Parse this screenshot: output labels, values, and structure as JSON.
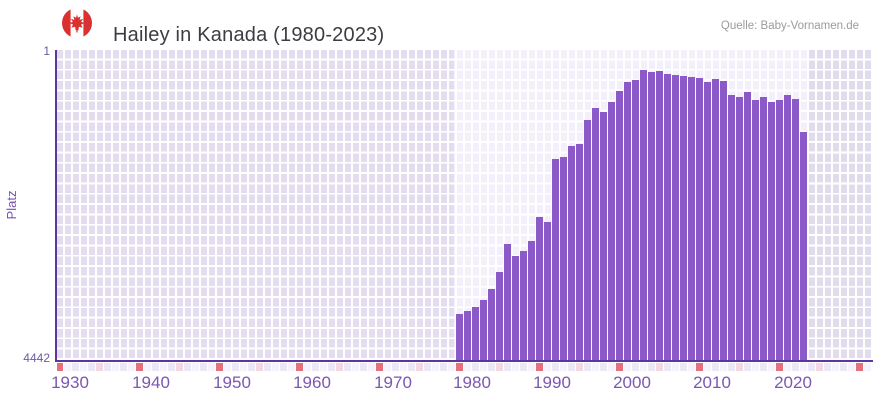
{
  "header": {
    "title": "Hailey in Kanada (1980-2023)",
    "source": "Quelle: Baby-Vornamen.de",
    "flag_icon": "canada-flag"
  },
  "chart_data": {
    "type": "bar",
    "title": "Hailey in Kanada (1980-2023)",
    "xlabel": "",
    "ylabel": "Platz",
    "y_axis": {
      "min": 1,
      "max": 4442,
      "inverted": true,
      "top_tick": "1",
      "bottom_tick": "4442"
    },
    "x_ticks": [
      "1930",
      "1940",
      "1950",
      "1960",
      "1970",
      "1980",
      "1990",
      "2000",
      "2010",
      "2020"
    ],
    "x_range_displayed": [
      1930,
      2031
    ],
    "highlight_range": [
      1980,
      2023
    ],
    "grid": true,
    "legend": null,
    "years": [
      1980,
      1981,
      1982,
      1983,
      1984,
      1985,
      1986,
      1987,
      1988,
      1989,
      1990,
      1991,
      1992,
      1993,
      1994,
      1995,
      1996,
      1997,
      1998,
      1999,
      2000,
      2001,
      2002,
      2003,
      2004,
      2005,
      2006,
      2007,
      2008,
      2009,
      2010,
      2011,
      2012,
      2013,
      2014,
      2015,
      2016,
      2017,
      2018,
      2019,
      2020,
      2021,
      2022,
      2023
    ],
    "ranks": [
      3786,
      3743,
      3686,
      3586,
      3429,
      3186,
      2786,
      2958,
      2886,
      2743,
      2400,
      2458,
      1558,
      1529,
      1372,
      1343,
      1000,
      829,
      886,
      743,
      586,
      458,
      429,
      287,
      315,
      296,
      343,
      353,
      372,
      381,
      400,
      458,
      410,
      438,
      639,
      676,
      600,
      715,
      676,
      753,
      724,
      639,
      696,
      1176
    ]
  },
  "colors": {
    "bar": "#8c5ac8",
    "axis_line": "#5b35a0",
    "x_tick_label": "#7d55b2",
    "y_tick_label": "#6e5a9e",
    "y_axis_title": "#7b50ae",
    "title_color": "#3d3c43",
    "source_color": "#9b9b9b",
    "plot_bg_in_range": "#f4f0fb",
    "plot_bg_out_range_left": "#e3ddef",
    "plot_bg_out_range_right": "#e1dcec",
    "decade_mark": "#e4707c",
    "half_decade_mark": "#f3d7e2",
    "strip_cell_even": "#ece7f5",
    "strip_cell_odd": "#f5f2fb",
    "flag_red": "#d8312f"
  }
}
